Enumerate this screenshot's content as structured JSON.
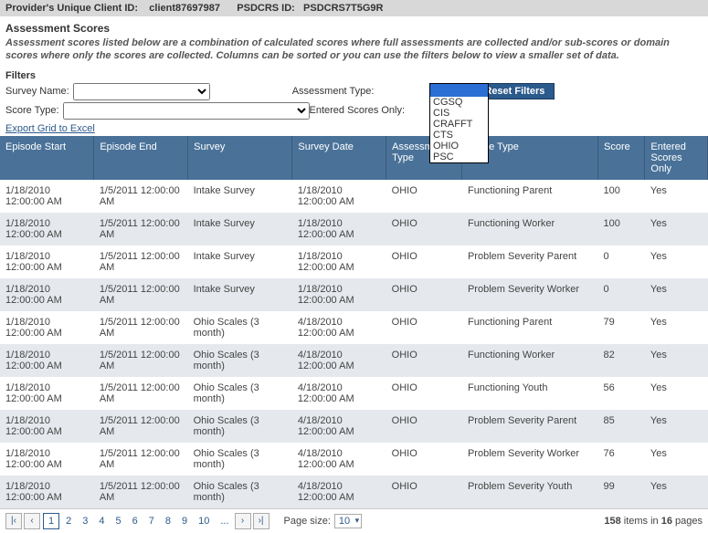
{
  "header": {
    "client_label": "Provider's Unique Client ID:",
    "client_value": "client87697987",
    "psdcrs_label": "PSDCRS ID:",
    "psdcrs_value": "PSDCRS7T5G9R"
  },
  "section_title": "Assessment Scores",
  "description": "Assessment scores listed below are a combination of calculated scores where full assessments are collected and/or sub-scores or domain scores where only the scores are collected. Columns can be sorted or you can use the filters below to view a smaller set of data.",
  "filters": {
    "title": "Filters",
    "survey_name_label": "Survey Name:",
    "score_type_label": "Score Type:",
    "assessment_type_label": "Assessment Type:",
    "entered_scores_only_label": "Entered Scores Only:",
    "reset_label": "Reset Filters",
    "dropdown_options": [
      "CGSQ",
      "CIS",
      "CRAFFT",
      "CTS",
      "OHIO",
      "PSC"
    ]
  },
  "export_label": "Export Grid to Excel",
  "columns": {
    "ep_start": "Episode Start",
    "ep_end": "Episode End",
    "survey": "Survey",
    "sdate": "Survey Date",
    "atype": "Assessment Type",
    "stype": "Score Type",
    "score": "Score",
    "eso": "Entered Scores Only"
  },
  "rows": [
    {
      "ep_start": "1/18/2010 12:00:00 AM",
      "ep_end": "1/5/2011 12:00:00 AM",
      "survey": "Intake Survey",
      "sdate": "1/18/2010 12:00:00 AM",
      "atype": "OHIO",
      "stype": "Functioning Parent",
      "score": "100",
      "eso": "Yes"
    },
    {
      "ep_start": "1/18/2010 12:00:00 AM",
      "ep_end": "1/5/2011 12:00:00 AM",
      "survey": "Intake Survey",
      "sdate": "1/18/2010 12:00:00 AM",
      "atype": "OHIO",
      "stype": "Functioning Worker",
      "score": "100",
      "eso": "Yes"
    },
    {
      "ep_start": "1/18/2010 12:00:00 AM",
      "ep_end": "1/5/2011 12:00:00 AM",
      "survey": "Intake Survey",
      "sdate": "1/18/2010 12:00:00 AM",
      "atype": "OHIO",
      "stype": "Problem Severity Parent",
      "score": "0",
      "eso": "Yes"
    },
    {
      "ep_start": "1/18/2010 12:00:00 AM",
      "ep_end": "1/5/2011 12:00:00 AM",
      "survey": "Intake Survey",
      "sdate": "1/18/2010 12:00:00 AM",
      "atype": "OHIO",
      "stype": "Problem Severity Worker",
      "score": "0",
      "eso": "Yes"
    },
    {
      "ep_start": "1/18/2010 12:00:00 AM",
      "ep_end": "1/5/2011 12:00:00 AM",
      "survey": "Ohio Scales (3 month)",
      "sdate": "4/18/2010 12:00:00 AM",
      "atype": "OHIO",
      "stype": "Functioning Parent",
      "score": "79",
      "eso": "Yes"
    },
    {
      "ep_start": "1/18/2010 12:00:00 AM",
      "ep_end": "1/5/2011 12:00:00 AM",
      "survey": "Ohio Scales (3 month)",
      "sdate": "4/18/2010 12:00:00 AM",
      "atype": "OHIO",
      "stype": "Functioning Worker",
      "score": "82",
      "eso": "Yes"
    },
    {
      "ep_start": "1/18/2010 12:00:00 AM",
      "ep_end": "1/5/2011 12:00:00 AM",
      "survey": "Ohio Scales (3 month)",
      "sdate": "4/18/2010 12:00:00 AM",
      "atype": "OHIO",
      "stype": "Functioning Youth",
      "score": "56",
      "eso": "Yes"
    },
    {
      "ep_start": "1/18/2010 12:00:00 AM",
      "ep_end": "1/5/2011 12:00:00 AM",
      "survey": "Ohio Scales (3 month)",
      "sdate": "4/18/2010 12:00:00 AM",
      "atype": "OHIO",
      "stype": "Problem Severity Parent",
      "score": "85",
      "eso": "Yes"
    },
    {
      "ep_start": "1/18/2010 12:00:00 AM",
      "ep_end": "1/5/2011 12:00:00 AM",
      "survey": "Ohio Scales (3 month)",
      "sdate": "4/18/2010 12:00:00 AM",
      "atype": "OHIO",
      "stype": "Problem Severity Worker",
      "score": "76",
      "eso": "Yes"
    },
    {
      "ep_start": "1/18/2010 12:00:00 AM",
      "ep_end": "1/5/2011 12:00:00 AM",
      "survey": "Ohio Scales (3 month)",
      "sdate": "4/18/2010 12:00:00 AM",
      "atype": "OHIO",
      "stype": "Problem Severity Youth",
      "score": "99",
      "eso": "Yes"
    }
  ],
  "pager": {
    "pages": [
      "1",
      "2",
      "3",
      "4",
      "5",
      "6",
      "7",
      "8",
      "9",
      "10",
      "..."
    ],
    "current": "1",
    "page_size_label": "Page size:",
    "page_size_value": "10",
    "total_items": "158",
    "total_pages": "16",
    "summary_prefix": " items in ",
    "summary_suffix": " pages"
  }
}
